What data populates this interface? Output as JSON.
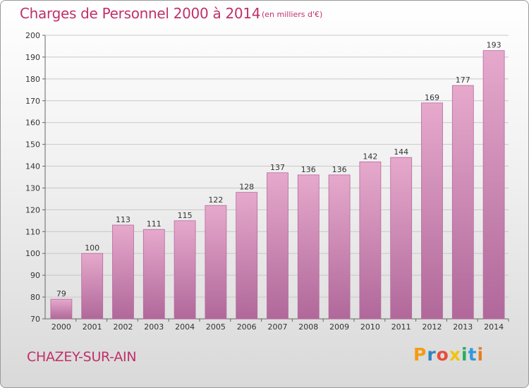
{
  "title": "Charges de Personnel 2000 à 2014",
  "subtitle": "(en milliers d'€)",
  "town": "CHAZEY-SUR-AIN",
  "logo": {
    "letters": [
      "P",
      "r",
      "o",
      "x",
      "i",
      "t",
      "i"
    ],
    "colors": [
      "#f39c12",
      "#2e86c1",
      "#e74c3c",
      "#f1c40f",
      "#27ae60",
      "#3498db",
      "#e67e22"
    ]
  },
  "colors": {
    "bar_top": "#e6a9cc",
    "bar_bottom": "#b0689a",
    "bar_edge": "#b76a9c",
    "accent": "#c0306a"
  },
  "chart_data": {
    "type": "bar",
    "categories": [
      "2000",
      "2001",
      "2002",
      "2003",
      "2004",
      "2005",
      "2006",
      "2007",
      "2008",
      "2009",
      "2010",
      "2011",
      "2012",
      "2013",
      "2014"
    ],
    "values": [
      79,
      100,
      113,
      111,
      115,
      122,
      128,
      137,
      136,
      136,
      142,
      144,
      169,
      177,
      193
    ],
    "ylim": [
      70,
      200
    ],
    "yticks": [
      70,
      80,
      90,
      100,
      110,
      120,
      130,
      140,
      150,
      160,
      170,
      180,
      190,
      200
    ],
    "grid": true
  }
}
